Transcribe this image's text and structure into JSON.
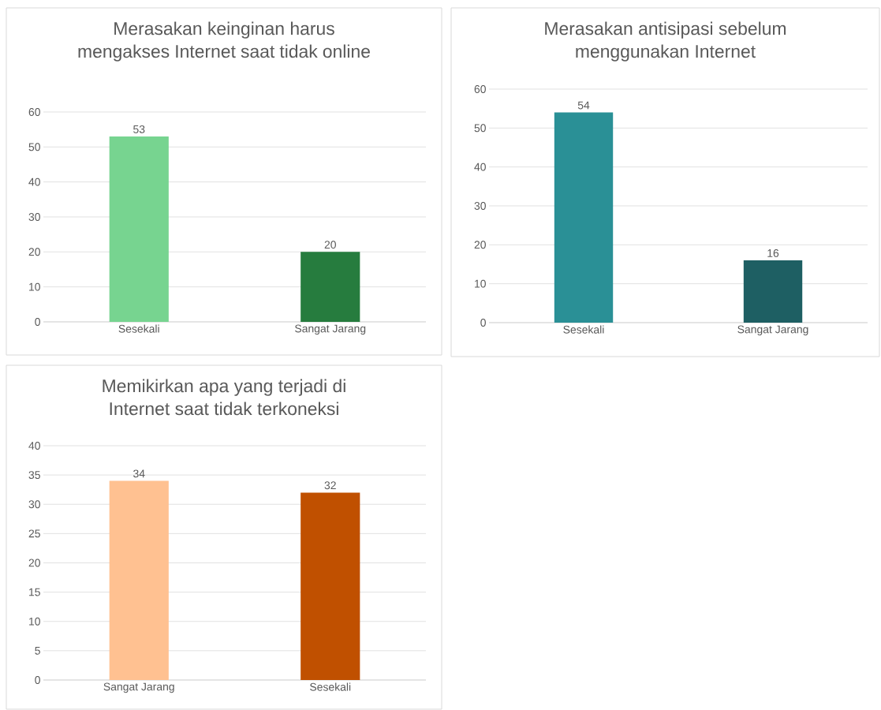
{
  "chart_data": [
    {
      "type": "bar",
      "title": "Merasakan keinginan harus mengakses Internet saat tidak online",
      "categories": [
        "Sesekali",
        "Sangat Jarang"
      ],
      "values": [
        53,
        20
      ],
      "colors": [
        "#77d490",
        "#267c3e"
      ],
      "ylim": [
        0,
        60
      ],
      "yticks": [
        0,
        10,
        20,
        30,
        40,
        50,
        60
      ],
      "grid": "y",
      "data_labels": true
    },
    {
      "type": "bar",
      "title": "Merasakan antisipasi sebelum menggunakan Internet",
      "categories": [
        "Sesekali",
        "Sangat Jarang"
      ],
      "values": [
        54,
        16
      ],
      "colors": [
        "#2a9096",
        "#1e5f63"
      ],
      "ylim": [
        0,
        60
      ],
      "yticks": [
        0,
        10,
        20,
        30,
        40,
        50,
        60
      ],
      "grid": "y",
      "data_labels": true
    },
    {
      "type": "bar",
      "title": "Memikirkan apa yang terjadi di Internet saat tidak terkoneksi",
      "categories": [
        "Sangat Jarang",
        "Sesekali"
      ],
      "values": [
        34,
        32
      ],
      "colors": [
        "#ffc191",
        "#c05000"
      ],
      "ylim": [
        0,
        40
      ],
      "yticks": [
        0,
        5,
        10,
        15,
        20,
        25,
        30,
        35,
        40
      ],
      "grid": "y",
      "data_labels": true
    }
  ]
}
